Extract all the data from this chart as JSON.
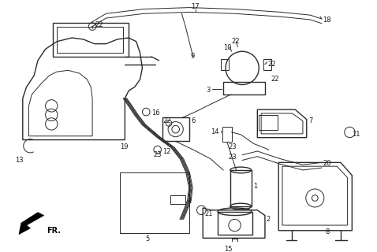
{
  "bg_color": "#ffffff",
  "line_color": "#2a2a2a",
  "fig_width": 4.78,
  "fig_height": 3.2,
  "dpi": 100
}
